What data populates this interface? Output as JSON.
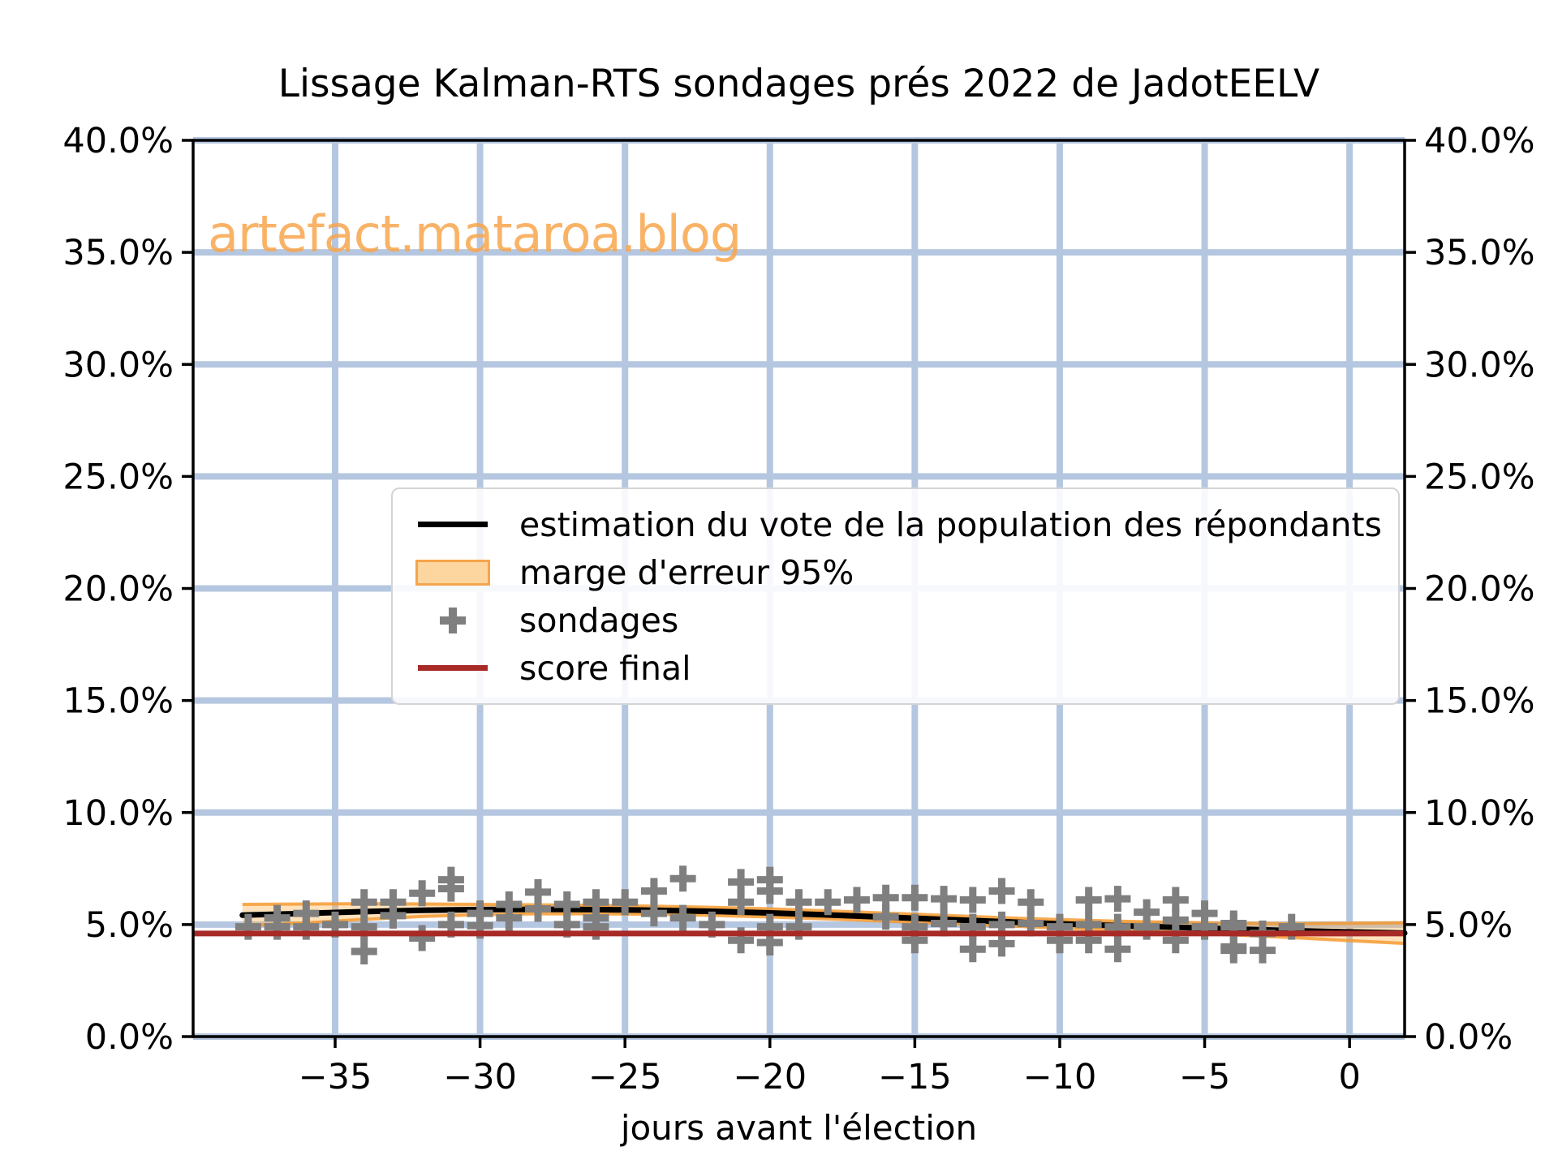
{
  "title": "Lissage Kalman-RTS sondages prés 2022 de JadotEELV",
  "watermark": "artefact.mataroa.blog",
  "xlabel": "jours avant l'élection",
  "legend": {
    "items": [
      {
        "label": "estimation du vote de la population des répondants",
        "swatch": "black-line"
      },
      {
        "label": "marge d'erreur 95%",
        "swatch": "orange-band-patch"
      },
      {
        "label": "sondages",
        "swatch": "gray-plus-marker"
      },
      {
        "label": "score final",
        "swatch": "dark-red-line"
      }
    ]
  },
  "colors": {
    "grid": "#b5c7e0",
    "estimation_line": "#000000",
    "band_fill": "rgba(255,171,64,0.35)",
    "band_edge": "rgba(245,150,40,0.8)",
    "markers": "#7f7f7f",
    "score_final": "#a82a26",
    "watermark": "#f9a64d",
    "spine": "#000000"
  },
  "chart_data": {
    "type": "line",
    "title": "Lissage Kalman-RTS sondages prés 2022 de JadotEELV",
    "xlabel": "jours avant l'élection",
    "ylabel": "",
    "xlim": [
      -39.9,
      1.9
    ],
    "ylim": [
      0,
      40
    ],
    "grid": true,
    "legend_position": "center-left",
    "x_ticks": {
      "values": [
        -35,
        -30,
        -25,
        -20,
        -15,
        -10,
        -5,
        0
      ],
      "labels": [
        "−35",
        "−30",
        "−25",
        "−20",
        "−15",
        "−10",
        "−5",
        "0"
      ]
    },
    "y_ticks": {
      "values": [
        0,
        5,
        10,
        15,
        20,
        25,
        30,
        35,
        40
      ],
      "labels": [
        "0.0%",
        "5.0%",
        "10.0%",
        "15.0%",
        "20.0%",
        "25.0%",
        "30.0%",
        "35.0%",
        "40.0%"
      ],
      "sides": "both"
    },
    "series": [
      {
        "name": "estimation du vote de la population des répondants",
        "kind": "line",
        "color": "#000000",
        "points": [
          [
            -38.2,
            5.42
          ],
          [
            -36,
            5.5
          ],
          [
            -34,
            5.58
          ],
          [
            -32,
            5.64
          ],
          [
            -30,
            5.67
          ],
          [
            -28,
            5.68
          ],
          [
            -26,
            5.67
          ],
          [
            -24,
            5.64
          ],
          [
            -22,
            5.59
          ],
          [
            -20,
            5.52
          ],
          [
            -18,
            5.43
          ],
          [
            -16,
            5.33
          ],
          [
            -14,
            5.23
          ],
          [
            -12,
            5.13
          ],
          [
            -10,
            5.03
          ],
          [
            -8,
            4.95
          ],
          [
            -6,
            4.88
          ],
          [
            -4,
            4.8
          ],
          [
            -2,
            4.73
          ],
          [
            0,
            4.67
          ],
          [
            1.9,
            4.62
          ]
        ]
      },
      {
        "name": "marge d'erreur 95%",
        "kind": "band",
        "fill": "rgba(255,171,64,0.35)",
        "edge": "rgba(245,150,40,0.8)",
        "upper": [
          [
            -38.2,
            5.9
          ],
          [
            -36,
            5.92
          ],
          [
            -34,
            5.93
          ],
          [
            -32,
            5.92
          ],
          [
            -30,
            5.9
          ],
          [
            -28,
            5.88
          ],
          [
            -26,
            5.86
          ],
          [
            -24,
            5.82
          ],
          [
            -22,
            5.77
          ],
          [
            -20,
            5.7
          ],
          [
            -18,
            5.61
          ],
          [
            -16,
            5.51
          ],
          [
            -14,
            5.41
          ],
          [
            -12,
            5.31
          ],
          [
            -10,
            5.22
          ],
          [
            -8,
            5.15
          ],
          [
            -6,
            5.1
          ],
          [
            -4,
            5.06
          ],
          [
            -2,
            5.04
          ],
          [
            0,
            5.06
          ],
          [
            1.9,
            5.08
          ]
        ],
        "lower": [
          [
            -38.2,
            4.94
          ],
          [
            -36,
            5.08
          ],
          [
            -34,
            5.23
          ],
          [
            -32,
            5.36
          ],
          [
            -30,
            5.44
          ],
          [
            -28,
            5.48
          ],
          [
            -26,
            5.48
          ],
          [
            -24,
            5.46
          ],
          [
            -22,
            5.41
          ],
          [
            -20,
            5.34
          ],
          [
            -18,
            5.25
          ],
          [
            -16,
            5.15
          ],
          [
            -14,
            5.05
          ],
          [
            -12,
            4.95
          ],
          [
            -10,
            4.84
          ],
          [
            -8,
            4.75
          ],
          [
            -6,
            4.66
          ],
          [
            -4,
            4.54
          ],
          [
            -2,
            4.42
          ],
          [
            0,
            4.28
          ],
          [
            1.9,
            4.16
          ]
        ]
      },
      {
        "name": "sondages",
        "kind": "scatter-plus",
        "color": "#7f7f7f",
        "points": [
          [
            -38,
            4.9
          ],
          [
            -37,
            5.3
          ],
          [
            -37,
            4.9
          ],
          [
            -36,
            5.5
          ],
          [
            -36,
            4.9
          ],
          [
            -35,
            5.0
          ],
          [
            -34,
            6.0
          ],
          [
            -34,
            4.9
          ],
          [
            -34,
            3.8
          ],
          [
            -33,
            6.0
          ],
          [
            -33,
            5.4
          ],
          [
            -32,
            6.4
          ],
          [
            -32,
            4.4
          ],
          [
            -31,
            7.0
          ],
          [
            -31,
            6.6
          ],
          [
            -31,
            5.0
          ],
          [
            -30,
            5.5
          ],
          [
            -30,
            4.95
          ],
          [
            -29,
            5.9
          ],
          [
            -29,
            5.3
          ],
          [
            -28,
            6.45
          ],
          [
            -28,
            5.7
          ],
          [
            -27,
            5.9
          ],
          [
            -27,
            5.0
          ],
          [
            -26,
            6.0
          ],
          [
            -26,
            5.3
          ],
          [
            -26,
            4.9
          ],
          [
            -25,
            6.0
          ],
          [
            -24,
            6.5
          ],
          [
            -24,
            5.5
          ],
          [
            -23,
            7.05
          ],
          [
            -23,
            5.3
          ],
          [
            -22,
            5.0
          ],
          [
            -21,
            6.9
          ],
          [
            -21,
            6.0
          ],
          [
            -21,
            4.3
          ],
          [
            -20,
            7.0
          ],
          [
            -20,
            6.5
          ],
          [
            -20,
            4.9
          ],
          [
            -20,
            4.2
          ],
          [
            -19,
            6.0
          ],
          [
            -19,
            4.9
          ],
          [
            -18,
            6.0
          ],
          [
            -17,
            6.1
          ],
          [
            -16,
            6.2
          ],
          [
            -16,
            5.35
          ],
          [
            -15,
            6.2
          ],
          [
            -15,
            4.9
          ],
          [
            -15,
            4.3
          ],
          [
            -14,
            6.15
          ],
          [
            -14,
            5.05
          ],
          [
            -13,
            6.1
          ],
          [
            -13,
            4.9
          ],
          [
            -13,
            3.9
          ],
          [
            -12,
            6.5
          ],
          [
            -12,
            5.0
          ],
          [
            -12,
            4.15
          ],
          [
            -11,
            6.0
          ],
          [
            -11,
            5.05
          ],
          [
            -10,
            4.9
          ],
          [
            -10,
            4.3
          ],
          [
            -9,
            6.1
          ],
          [
            -9,
            5.0
          ],
          [
            -9,
            4.3
          ],
          [
            -8,
            6.15
          ],
          [
            -8,
            4.9
          ],
          [
            -8,
            3.9
          ],
          [
            -7,
            5.55
          ],
          [
            -7,
            4.9
          ],
          [
            -6,
            6.1
          ],
          [
            -6,
            5.2
          ],
          [
            -6,
            4.3
          ],
          [
            -5,
            5.5
          ],
          [
            -5,
            4.9
          ],
          [
            -4,
            5.05
          ],
          [
            -4,
            4.9
          ],
          [
            -4,
            4.0
          ],
          [
            -4,
            3.85
          ],
          [
            -3,
            4.6
          ],
          [
            -3,
            3.85
          ],
          [
            -2,
            4.9
          ]
        ]
      },
      {
        "name": "score final",
        "kind": "hline",
        "color": "#a82a26",
        "value": 4.6
      }
    ]
  }
}
